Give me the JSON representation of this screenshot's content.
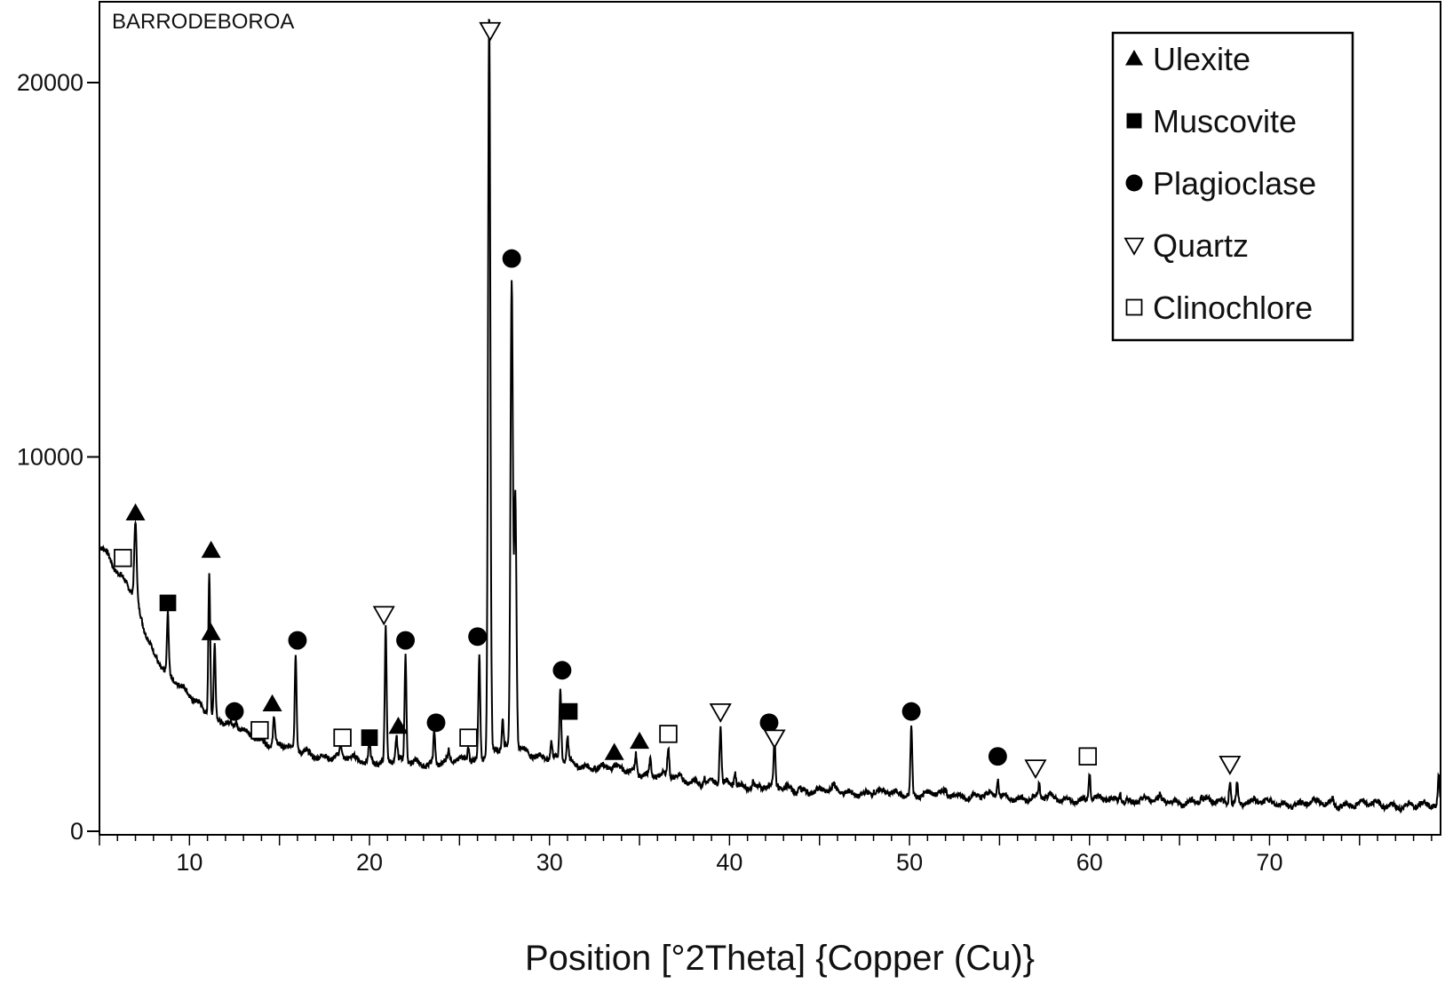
{
  "chart_data": {
    "type": "line",
    "title": "",
    "sample_label": "BARRODEBOROA",
    "xlabel": "Position [°2Theta] {Copper (Cu)}",
    "ylabel": "",
    "xlim": [
      5,
      79.5
    ],
    "ylim": [
      0,
      22000
    ],
    "x_ticks": [
      10,
      20,
      30,
      40,
      50,
      60,
      70
    ],
    "y_ticks": [
      0,
      10000,
      20000
    ],
    "grid": false,
    "legend_position": "top-right",
    "line_color": "#000000",
    "legend": [
      {
        "label": "Ulexite",
        "marker": "filled-triangle"
      },
      {
        "label": "Muscovite",
        "marker": "filled-square"
      },
      {
        "label": "Plagioclase",
        "marker": "filled-circle"
      },
      {
        "label": "Quartz",
        "marker": "open-down-triangle"
      },
      {
        "label": "Clinochlore",
        "marker": "open-square"
      }
    ],
    "background_curve": [
      [
        5.0,
        7700
      ],
      [
        5.5,
        7400
      ],
      [
        6.0,
        6900
      ],
      [
        6.5,
        6600
      ],
      [
        7.0,
        6200
      ],
      [
        7.5,
        5400
      ],
      [
        8.0,
        4800
      ],
      [
        8.5,
        4400
      ],
      [
        9.0,
        4100
      ],
      [
        10.0,
        3600
      ],
      [
        11.0,
        3200
      ],
      [
        12.0,
        2900
      ],
      [
        13.0,
        2650
      ],
      [
        14.0,
        2450
      ],
      [
        15.0,
        2300
      ],
      [
        16.0,
        2150
      ],
      [
        17.0,
        2050
      ],
      [
        18.0,
        1980
      ],
      [
        19.0,
        1930
      ],
      [
        20.0,
        1900
      ],
      [
        22.0,
        1850
      ],
      [
        24.0,
        1830
      ],
      [
        26.0,
        1950
      ],
      [
        27.0,
        2150
      ],
      [
        28.0,
        2300
      ],
      [
        29.0,
        2100
      ],
      [
        30.0,
        1950
      ],
      [
        32.0,
        1750
      ],
      [
        34.0,
        1650
      ],
      [
        36.0,
        1500
      ],
      [
        38.0,
        1350
      ],
      [
        40.0,
        1250
      ],
      [
        42.0,
        1180
      ],
      [
        44.0,
        1100
      ],
      [
        46.0,
        1060
      ],
      [
        48.0,
        1020
      ],
      [
        50.0,
        1000
      ],
      [
        52.0,
        980
      ],
      [
        54.0,
        950
      ],
      [
        56.0,
        900
      ],
      [
        58.0,
        870
      ],
      [
        60.0,
        850
      ],
      [
        62.0,
        840
      ],
      [
        65.0,
        800
      ],
      [
        68.0,
        780
      ],
      [
        70.0,
        760
      ],
      [
        72.0,
        740
      ],
      [
        75.0,
        720
      ],
      [
        78.0,
        690
      ],
      [
        79.0,
        680
      ],
      [
        79.5,
        650
      ]
    ],
    "peaks": [
      {
        "x": 7.0,
        "y": 8200
      },
      {
        "x": 8.8,
        "y": 5800
      },
      {
        "x": 10.6,
        "y": 3400
      },
      {
        "x": 11.1,
        "y": 7000
      },
      {
        "x": 11.4,
        "y": 5000
      },
      {
        "x": 12.6,
        "y": 2900
      },
      {
        "x": 14.7,
        "y": 3100
      },
      {
        "x": 15.9,
        "y": 4700
      },
      {
        "x": 18.4,
        "y": 2300
      },
      {
        "x": 20.0,
        "y": 2400
      },
      {
        "x": 20.9,
        "y": 5400
      },
      {
        "x": 21.5,
        "y": 2500
      },
      {
        "x": 22.0,
        "y": 4700
      },
      {
        "x": 23.6,
        "y": 2700
      },
      {
        "x": 24.4,
        "y": 2100
      },
      {
        "x": 25.5,
        "y": 2300
      },
      {
        "x": 26.1,
        "y": 4700
      },
      {
        "x": 26.65,
        "y": 22000
      },
      {
        "x": 27.4,
        "y": 3000
      },
      {
        "x": 27.9,
        "y": 14600
      },
      {
        "x": 28.1,
        "y": 9000
      },
      {
        "x": 30.1,
        "y": 2400
      },
      {
        "x": 30.6,
        "y": 3800
      },
      {
        "x": 31.0,
        "y": 2500
      },
      {
        "x": 32.5,
        "y": 1800
      },
      {
        "x": 33.6,
        "y": 1700
      },
      {
        "x": 34.8,
        "y": 2100
      },
      {
        "x": 35.6,
        "y": 1900
      },
      {
        "x": 36.6,
        "y": 2200
      },
      {
        "x": 38.6,
        "y": 1500
      },
      {
        "x": 39.5,
        "y": 2800
      },
      {
        "x": 40.3,
        "y": 1600
      },
      {
        "x": 41.3,
        "y": 1400
      },
      {
        "x": 42.5,
        "y": 2400
      },
      {
        "x": 43.9,
        "y": 1250
      },
      {
        "x": 45.8,
        "y": 1200
      },
      {
        "x": 48.0,
        "y": 1100
      },
      {
        "x": 50.1,
        "y": 2800
      },
      {
        "x": 52.0,
        "y": 1050
      },
      {
        "x": 54.9,
        "y": 1400
      },
      {
        "x": 57.2,
        "y": 1200
      },
      {
        "x": 60.0,
        "y": 1550
      },
      {
        "x": 61.7,
        "y": 1100
      },
      {
        "x": 63.9,
        "y": 900
      },
      {
        "x": 66.2,
        "y": 900
      },
      {
        "x": 67.8,
        "y": 1450
      },
      {
        "x": 68.2,
        "y": 1300
      },
      {
        "x": 73.5,
        "y": 900
      },
      {
        "x": 79.4,
        "y": 1500
      }
    ],
    "phase_markers": [
      {
        "phase": "Clinochlore",
        "x": 6.3,
        "y": 7300
      },
      {
        "phase": "Ulexite",
        "x": 7.0,
        "y": 8500
      },
      {
        "phase": "Muscovite",
        "x": 8.8,
        "y": 6100
      },
      {
        "phase": "Ulexite",
        "x": 11.2,
        "y": 7500
      },
      {
        "phase": "Ulexite",
        "x": 11.2,
        "y": 5300
      },
      {
        "phase": "Plagioclase",
        "x": 12.5,
        "y": 3200
      },
      {
        "phase": "Clinochlore",
        "x": 13.9,
        "y": 2700
      },
      {
        "phase": "Ulexite",
        "x": 14.6,
        "y": 3400
      },
      {
        "phase": "Plagioclase",
        "x": 16.0,
        "y": 5100
      },
      {
        "phase": "Clinochlore",
        "x": 18.5,
        "y": 2500
      },
      {
        "phase": "Muscovite",
        "x": 20.0,
        "y": 2500
      },
      {
        "phase": "Quartz",
        "x": 20.8,
        "y": 5800
      },
      {
        "phase": "Ulexite",
        "x": 21.6,
        "y": 2800
      },
      {
        "phase": "Plagioclase",
        "x": 22.0,
        "y": 5100
      },
      {
        "phase": "Plagioclase",
        "x": 23.7,
        "y": 2900
      },
      {
        "phase": "Clinochlore",
        "x": 25.5,
        "y": 2500
      },
      {
        "phase": "Plagioclase",
        "x": 26.0,
        "y": 5200
      },
      {
        "phase": "Quartz",
        "x": 26.7,
        "y": 21400
      },
      {
        "phase": "Plagioclase",
        "x": 27.9,
        "y": 15300
      },
      {
        "phase": "Plagioclase",
        "x": 30.7,
        "y": 4300
      },
      {
        "phase": "Muscovite",
        "x": 31.1,
        "y": 3200
      },
      {
        "phase": "Ulexite",
        "x": 33.6,
        "y": 2100
      },
      {
        "phase": "Ulexite",
        "x": 35.0,
        "y": 2400
      },
      {
        "phase": "Clinochlore",
        "x": 36.6,
        "y": 2600
      },
      {
        "phase": "Quartz",
        "x": 39.5,
        "y": 3200
      },
      {
        "phase": "Plagioclase",
        "x": 42.2,
        "y": 2900
      },
      {
        "phase": "Quartz",
        "x": 42.5,
        "y": 2500
      },
      {
        "phase": "Plagioclase",
        "x": 50.1,
        "y": 3200
      },
      {
        "phase": "Plagioclase",
        "x": 54.9,
        "y": 2000
      },
      {
        "phase": "Quartz",
        "x": 57.0,
        "y": 1700
      },
      {
        "phase": "Clinochlore",
        "x": 59.9,
        "y": 2000
      },
      {
        "phase": "Quartz",
        "x": 67.8,
        "y": 1800
      }
    ]
  }
}
